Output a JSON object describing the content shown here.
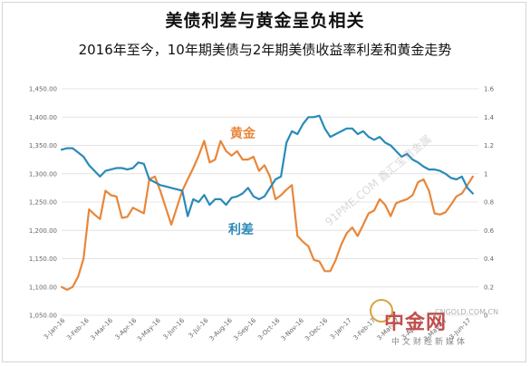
{
  "title": "美债利差与黄金呈负相关",
  "subtitle": "2016年至今，10年期美债与2年期美债收益率利差和黄金走势",
  "colors": {
    "gold": "#e8873a",
    "spread": "#2a8ab8",
    "grid": "#e4e4e4",
    "axis": "#666666"
  },
  "watermark": {
    "logo": "中金网",
    "tagline": "中文财经新媒体",
    "site": "CNGOLD.COM.CN",
    "diag": "91PME.COM 鑫汇宝贵金属"
  },
  "chart_data": {
    "type": "line",
    "grid": true,
    "legend": "none",
    "x_tick_labels": [
      "3-Jan-16",
      "3-Feb-16",
      "3-Mar-16",
      "3-Apr-16",
      "3-May-16",
      "3-Jun-16",
      "3-Jul-16",
      "3-Aug-16",
      "3-Sep-16",
      "3-Oct-16",
      "3-Nov-16",
      "3-Dec-16",
      "3-Jan-17",
      "3-Feb-17",
      "3-Mar-17",
      "3-Apr-17",
      "3-May-17",
      "3-Jun-17"
    ],
    "y_left": {
      "ticks": [
        "1,050.00",
        "1,100.00",
        "1,150.00",
        "1,200.00",
        "1,250.00",
        "1,300.00",
        "1,350.00",
        "1,400.00",
        "1,450.00"
      ],
      "range": [
        1050,
        1450
      ]
    },
    "y_right": {
      "ticks": [
        "0",
        "0.2",
        "0.4",
        "0.6",
        "0.8",
        "1",
        "1.2",
        "1.4",
        "1.6"
      ],
      "range": [
        0,
        1.6
      ]
    },
    "annotations": {
      "gold_label": "黄金",
      "spread_label": "利差"
    },
    "x_range": [
      0,
      76
    ],
    "series": [
      {
        "key": "gold",
        "axis": "left",
        "x": [
          0,
          1,
          2,
          3,
          4,
          5,
          6,
          7,
          8,
          9,
          10,
          11,
          12,
          13,
          14,
          15,
          16,
          17,
          18,
          19,
          20,
          21,
          22,
          23,
          24,
          25,
          26,
          27,
          28,
          29,
          30,
          31,
          32,
          33,
          34,
          35,
          36,
          37,
          38,
          39,
          40,
          41,
          42,
          43,
          44,
          45,
          46,
          47,
          48,
          49,
          50,
          51,
          52,
          53,
          54,
          55,
          56,
          57,
          58,
          59,
          60,
          61,
          62,
          63,
          64,
          65,
          66,
          67,
          68,
          69,
          70,
          71,
          72,
          73,
          74,
          75
        ],
        "values": [
          1100,
          1095,
          1100,
          1118,
          1150,
          1237,
          1228,
          1220,
          1270,
          1262,
          1260,
          1222,
          1224,
          1240,
          1235,
          1230,
          1290,
          1295,
          1270,
          1240,
          1210,
          1240,
          1270,
          1290,
          1310,
          1332,
          1358,
          1320,
          1325,
          1358,
          1340,
          1332,
          1340,
          1325,
          1325,
          1330,
          1305,
          1315,
          1295,
          1255,
          1262,
          1272,
          1280,
          1190,
          1180,
          1172,
          1148,
          1145,
          1128,
          1128,
          1148,
          1175,
          1195,
          1205,
          1190,
          1210,
          1230,
          1235,
          1255,
          1245,
          1225,
          1248,
          1252,
          1255,
          1262,
          1285,
          1290,
          1270,
          1230,
          1228,
          1232,
          1245,
          1260,
          1265,
          1280,
          1295
        ]
      },
      {
        "key": "spread",
        "axis": "right",
        "x": [
          0,
          1,
          2,
          3,
          4,
          5,
          6,
          7,
          8,
          9,
          10,
          11,
          12,
          13,
          14,
          15,
          16,
          17,
          18,
          19,
          20,
          21,
          22,
          23,
          24,
          25,
          26,
          27,
          28,
          29,
          30,
          31,
          32,
          33,
          34,
          35,
          36,
          37,
          38,
          39,
          40,
          41,
          42,
          43,
          44,
          45,
          46,
          47,
          48,
          49,
          50,
          51,
          52,
          53,
          54,
          55,
          56,
          57,
          58,
          59,
          60,
          61,
          62,
          63,
          64,
          65,
          66,
          67,
          68,
          69,
          70,
          71,
          72,
          73,
          74,
          75
        ],
        "values": [
          1.17,
          1.18,
          1.18,
          1.15,
          1.12,
          1.06,
          1.02,
          0.98,
          1.02,
          1.03,
          1.04,
          1.04,
          1.03,
          1.04,
          1.08,
          1.07,
          0.96,
          0.94,
          0.92,
          0.91,
          0.9,
          0.89,
          0.88,
          0.7,
          0.82,
          0.8,
          0.85,
          0.78,
          0.82,
          0.82,
          0.78,
          0.83,
          0.84,
          0.86,
          0.9,
          0.84,
          0.82,
          0.84,
          0.9,
          0.96,
          0.98,
          1.22,
          1.3,
          1.28,
          1.35,
          1.4,
          1.4,
          1.41,
          1.32,
          1.26,
          1.28,
          1.3,
          1.32,
          1.32,
          1.28,
          1.3,
          1.26,
          1.24,
          1.26,
          1.22,
          1.2,
          1.16,
          1.12,
          1.14,
          1.1,
          1.08,
          1.05,
          1.03,
          1.03,
          1.02,
          1.0,
          0.97,
          0.96,
          0.98,
          0.9,
          0.86
        ]
      }
    ]
  }
}
